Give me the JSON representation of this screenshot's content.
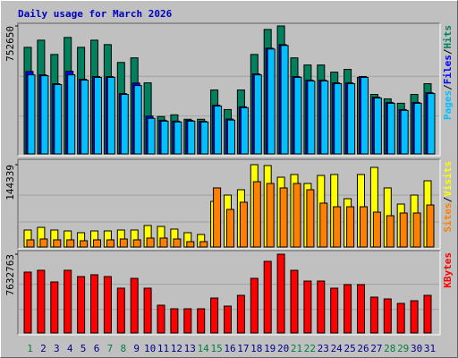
{
  "title": "Daily usage for March 2026",
  "legend_separator": "/",
  "chart_data": [
    {
      "type": "bar",
      "ylim": [
        0,
        752650
      ],
      "yticks": [
        752650
      ],
      "series": [
        {
          "name": "Hits",
          "color": "#00805c",
          "values": [
            627000,
            669000,
            585000,
            685000,
            627000,
            669000,
            643000,
            538000,
            565000,
            418000,
            220000,
            230000,
            204000,
            204000,
            376000,
            261000,
            376000,
            585000,
            732000,
            752650,
            565000,
            523000,
            523000,
            481000,
            497000,
            450000,
            350000,
            324000,
            298000,
            350000,
            413000
          ]
        },
        {
          "name": "Files",
          "color": "#0000ff",
          "values": [
            485000,
            465000,
            413000,
            486000,
            439000,
            455000,
            455000,
            355000,
            417000,
            222000,
            198000,
            193000,
            197000,
            192000,
            287000,
            205000,
            277000,
            471000,
            622000,
            643000,
            455000,
            434000,
            434000,
            418000,
            418000,
            455000,
            334000,
            303000,
            261000,
            303000,
            360000
          ]
        },
        {
          "name": "Pages",
          "color": "#00c0ff",
          "values": [
            465000,
            460000,
            408000,
            465000,
            434000,
            450000,
            450000,
            350000,
            402000,
            209000,
            193000,
            188000,
            193000,
            188000,
            282000,
            199000,
            272000,
            465000,
            617000,
            638000,
            450000,
            429000,
            429000,
            413000,
            413000,
            450000,
            329000,
            298000,
            256000,
            298000,
            355000
          ]
        }
      ]
    },
    {
      "type": "bar",
      "ylim": [
        0,
        144339
      ],
      "yticks": [
        144339
      ],
      "series": [
        {
          "name": "Visits",
          "color": "#ffff00",
          "values": [
            29800,
            34500,
            29800,
            28200,
            25100,
            28200,
            28200,
            29800,
            29800,
            37700,
            36100,
            31400,
            25100,
            22000,
            80000,
            91000,
            100400,
            144339,
            142800,
            122400,
            127100,
            111400,
            125500,
            127100,
            84700,
            127100,
            139600,
            103600,
            75300,
            91000,
            116100
          ]
        },
        {
          "name": "Sites",
          "color": "#ff8000",
          "values": [
            12600,
            14100,
            12600,
            12600,
            11000,
            12600,
            12600,
            14100,
            12600,
            15700,
            15700,
            14100,
            9400,
            9400,
            103600,
            65900,
            78500,
            114500,
            111400,
            103600,
            111400,
            100400,
            76900,
            70600,
            70600,
            70600,
            61200,
            54900,
            59600,
            59600,
            73700
          ]
        }
      ]
    },
    {
      "type": "bar",
      "ylim": [
        0,
        7632763
      ],
      "yticks": [
        7632763
      ],
      "categories": [
        "1",
        "2",
        "3",
        "4",
        "5",
        "6",
        "7",
        "8",
        "9",
        "10",
        "11",
        "12",
        "13",
        "14",
        "15",
        "16",
        "17",
        "18",
        "19",
        "20",
        "21",
        "22",
        "23",
        "24",
        "25",
        "26",
        "27",
        "28",
        "29",
        "30",
        "31"
      ],
      "category_colors": [
        "#008040",
        "#00008b",
        "#00008b",
        "#00008b",
        "#00008b",
        "#00008b",
        "#008040",
        "#008040",
        "#00008b",
        "#00008b",
        "#00008b",
        "#00008b",
        "#00008b",
        "#008040",
        "#008040",
        "#00008b",
        "#00008b",
        "#00008b",
        "#00008b",
        "#00008b",
        "#008040",
        "#008040",
        "#00008b",
        "#00008b",
        "#00008b",
        "#00008b",
        "#00008b",
        "#008040",
        "#008040",
        "#00008b",
        "#00008b"
      ],
      "series": [
        {
          "name": "KBytes",
          "color": "#ff0000",
          "values": [
            5898000,
            6072000,
            4944000,
            6072000,
            5464000,
            5638000,
            5464000,
            4337000,
            5291000,
            4337000,
            2689000,
            2342000,
            2342000,
            2342000,
            3383000,
            2602000,
            3643000,
            5291000,
            6939000,
            7632763,
            6072000,
            5031000,
            5031000,
            4337000,
            4684000,
            4684000,
            3469000,
            3296000,
            2862000,
            3122000,
            3643000
          ]
        }
      ]
    }
  ]
}
